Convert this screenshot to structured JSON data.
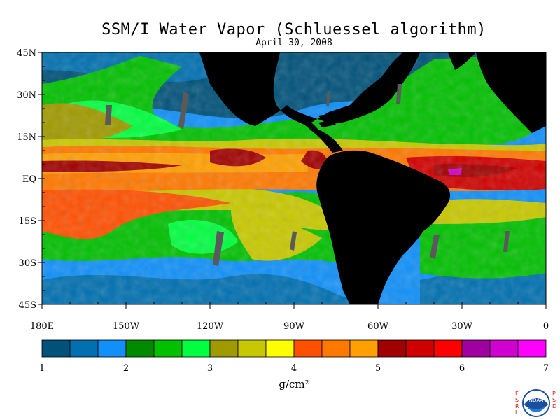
{
  "header": {
    "title": "SSM/I Water Vapor (Schluessel algorithm)",
    "date": "April 30, 2008"
  },
  "map": {
    "lat_labels": [
      "45N",
      "30N",
      "15N",
      "EQ",
      "15S",
      "30S",
      "45S"
    ],
    "lon_labels": [
      "180E",
      "150W",
      "120W",
      "90W",
      "60W",
      "30W",
      "0"
    ],
    "extent": {
      "lon_min": -180,
      "lon_max": 0,
      "lat_min": -45,
      "lat_max": 45
    }
  },
  "colorbar": {
    "colors": [
      "#00527a",
      "#0070b0",
      "#1090f8",
      "#008a00",
      "#00c000",
      "#00ff40",
      "#a09a00",
      "#c8c800",
      "#ffff00",
      "#ff5000",
      "#ff7800",
      "#ffa000",
      "#a00000",
      "#d00000",
      "#ff0000",
      "#a000a0",
      "#d000d0",
      "#ff00ff"
    ],
    "tick_labels": [
      "1",
      "2",
      "3",
      "4",
      "5",
      "6",
      "7"
    ],
    "units": "g/cm²"
  },
  "logo": {
    "left_letters": [
      "E",
      "S",
      "R",
      "L"
    ],
    "right_letters": [
      "P",
      "S",
      "D"
    ],
    "badge": "NOAA"
  }
}
